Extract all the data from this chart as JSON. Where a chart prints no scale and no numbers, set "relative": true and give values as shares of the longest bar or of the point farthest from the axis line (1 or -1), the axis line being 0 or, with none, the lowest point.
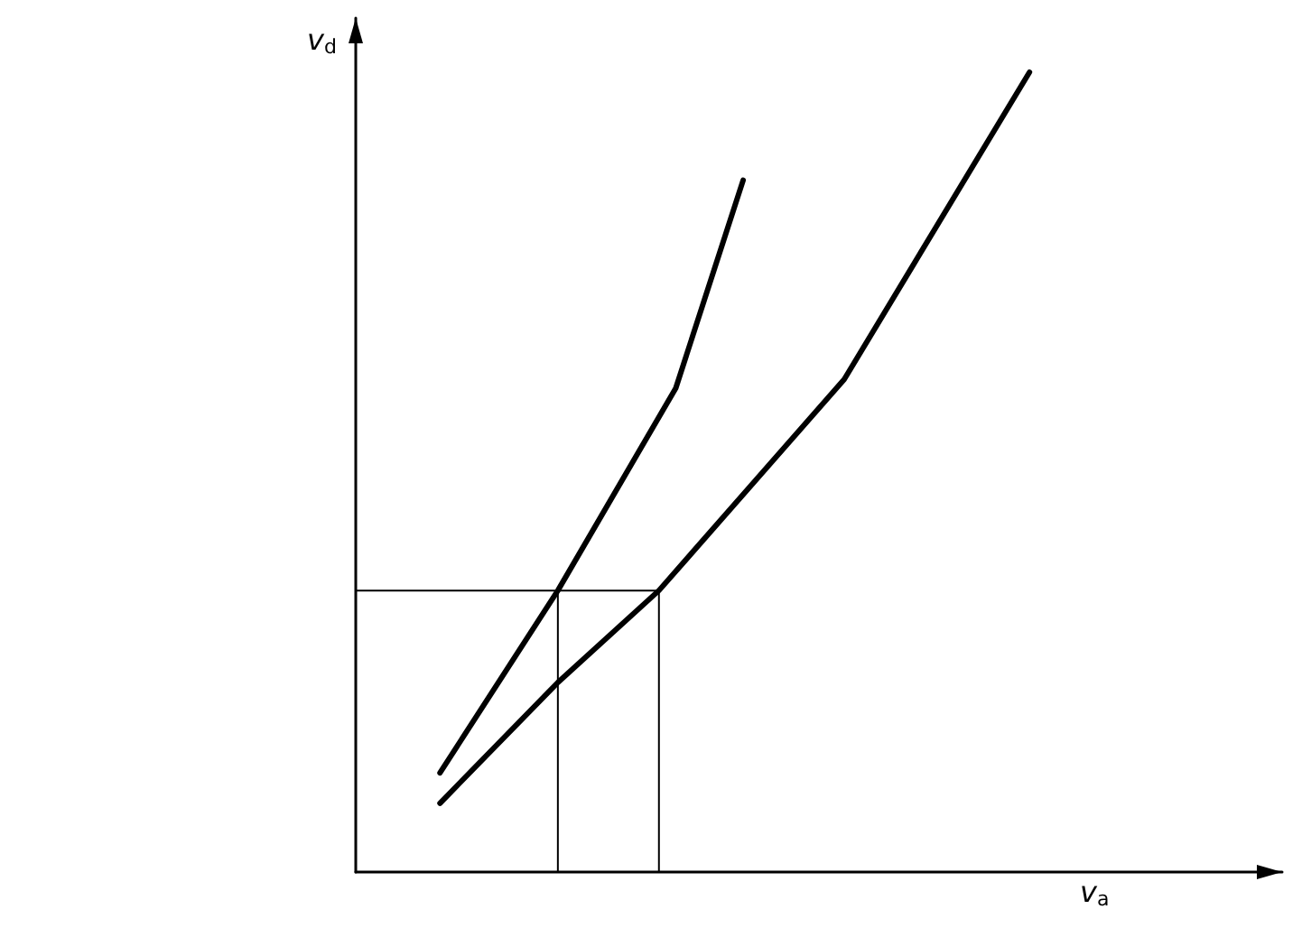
{
  "chart_data": {
    "type": "line",
    "relative": true,
    "xlabel": "v$_{a}$",
    "ylabel": "v$_{d}$",
    "grid": false,
    "marker": "none",
    "line_style": "solid",
    "categories": [
      null,
      null,
      null,
      null,
      null,
      null,
      null,
      null,
      null,
      null,
      null,
      null,
      null,
      null,
      null,
      null,
      null,
      null,
      null,
      null,
      null,
      null,
      null,
      null,
      null,
      null,
      null,
      null,
      null,
      null,
      null,
      null,
      null,
      null,
      null,
      null,
      null,
      null,
      null,
      null,
      null,
      null,
      null,
      null,
      null,
      null,
      null,
      null,
      null,
      null,
      null,
      null,
      null,
      null,
      null,
      null
    ],
    "series": [
      {
        "color": "#000000",
        "values": [
          null,
          null,
          null,
          null,
          null,
          0.124,
          null,
          null,
          null,
          null,
          null,
          null,
          0.352,
          null,
          null,
          null,
          null,
          null,
          null,
          0.605,
          null,
          null,
          null,
          0.865,
          null,
          null,
          null,
          null,
          null,
          null,
          null,
          null,
          null,
          null,
          null,
          null,
          null,
          null,
          null,
          null,
          null,
          null,
          null,
          null,
          null,
          null,
          null,
          null,
          null,
          null,
          null,
          null,
          null,
          null,
          null,
          null
        ]
      },
      {
        "color": "#000000",
        "values": [
          null,
          null,
          null,
          null,
          null,
          0.086,
          null,
          null,
          null,
          null,
          null,
          null,
          0.237,
          null,
          null,
          null,
          null,
          null,
          0.352,
          null,
          null,
          null,
          null,
          null,
          null,
          null,
          null,
          null,
          null,
          0.616,
          null,
          null,
          null,
          null,
          null,
          null,
          null,
          null,
          null,
          null,
          1,
          null,
          null,
          null,
          null,
          null,
          null,
          null,
          null,
          null,
          null,
          null,
          null,
          null,
          null,
          null
        ]
      }
    ]
  }
}
